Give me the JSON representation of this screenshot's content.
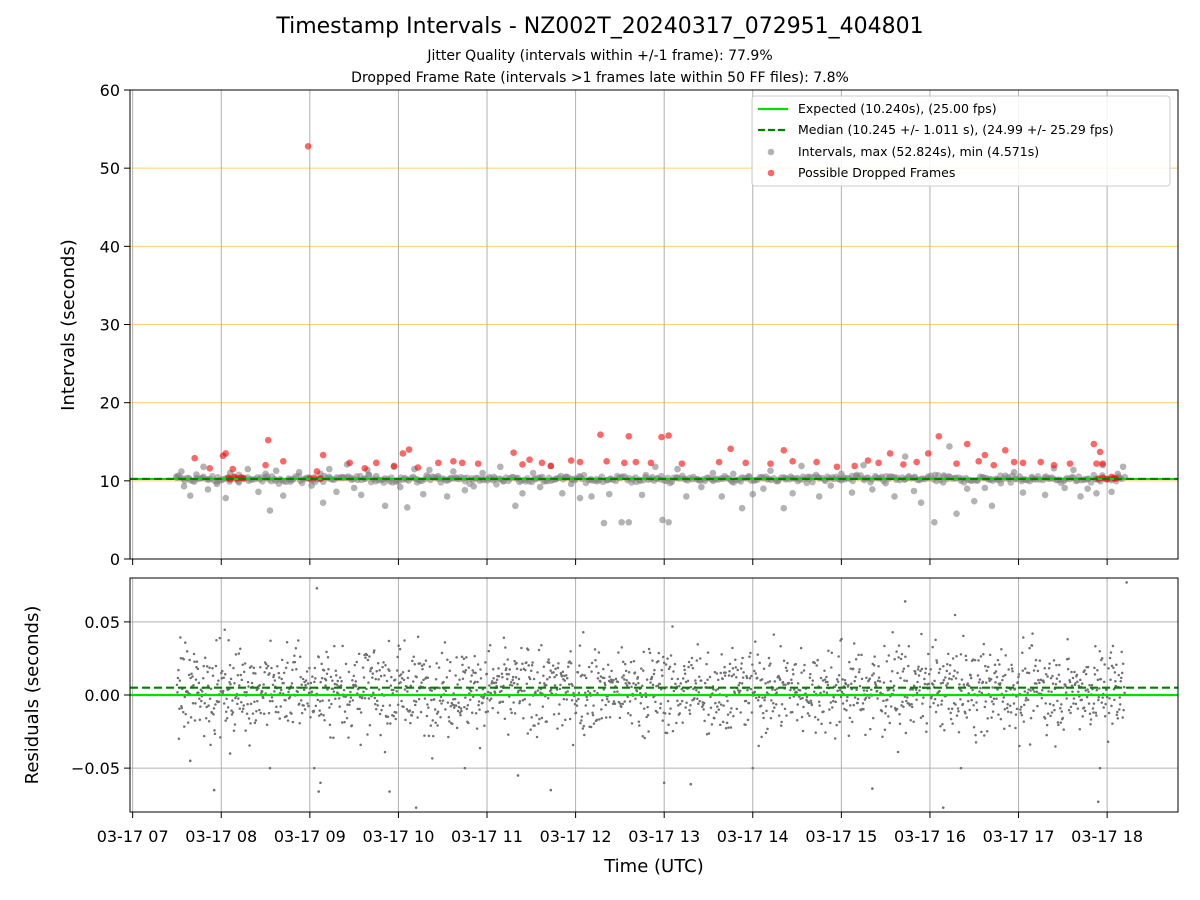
{
  "header": {
    "title": "Timestamp Intervals - NZ002T_20240317_072951_404801",
    "subtitle_jitter": "Jitter Quality (intervals within +/-1 frame): 77.9%",
    "subtitle_dropped": "Dropped Frame Rate (intervals >1 frames late within 50 FF files): 7.8%"
  },
  "chart_data": [
    {
      "type": "scatter",
      "panel": "top",
      "ylabel": "Intervals (seconds)",
      "ylim": [
        0,
        60
      ],
      "yticks": [
        "0",
        "10",
        "20",
        "30",
        "40",
        "50",
        "60"
      ],
      "xlim_hours": [
        6.97,
        18.8
      ],
      "grid": "vertical grey at each hour, horizontal orange at 10-60 s",
      "legend_position": "top-right",
      "expected_interval": 10.24,
      "median_interval": 10.245,
      "legend": {
        "expected": "Expected (10.240s), (25.00 fps)",
        "median": "Median (10.245 +/- 1.011 s), (24.99 +/- 25.29 fps)",
        "intervals": "Intervals, max (52.824s), min (4.571s)",
        "dropped": "Possible Dropped Frames"
      },
      "series": [
        {
          "name": "Intervals, max (52.824s), min (4.571s)",
          "color": "#808080",
          "points": [
            [
              7.5,
              10.4
            ],
            [
              7.55,
              11.2
            ],
            [
              7.58,
              9.3
            ],
            [
              7.65,
              8.1
            ],
            [
              7.72,
              10.8
            ],
            [
              7.8,
              11.8
            ],
            [
              7.85,
              8.9
            ],
            [
              7.95,
              9.6
            ],
            [
              8.05,
              7.8
            ],
            [
              8.1,
              11.0
            ],
            [
              8.2,
              9.8
            ],
            [
              8.3,
              11.5
            ],
            [
              8.42,
              8.6
            ],
            [
              8.5,
              10.9
            ],
            [
              8.55,
              6.2
            ],
            [
              8.62,
              11.3
            ],
            [
              8.7,
              8.1
            ],
            [
              8.78,
              9.9
            ],
            [
              8.88,
              11.1
            ],
            [
              9.02,
              9.4
            ],
            [
              9.12,
              10.9
            ],
            [
              9.15,
              7.2
            ],
            [
              9.22,
              11.5
            ],
            [
              9.3,
              8.6
            ],
            [
              9.42,
              12.1
            ],
            [
              9.5,
              9.1
            ],
            [
              9.58,
              8.2
            ],
            [
              9.65,
              11.4
            ],
            [
              9.75,
              10.6
            ],
            [
              9.85,
              6.8
            ],
            [
              9.95,
              11.8
            ],
            [
              10.02,
              9.2
            ],
            [
              10.1,
              6.6
            ],
            [
              10.18,
              11.5
            ],
            [
              10.28,
              8.3
            ],
            [
              10.35,
              11.4
            ],
            [
              10.45,
              10.6
            ],
            [
              10.55,
              8.0
            ],
            [
              10.62,
              11.2
            ],
            [
              10.75,
              8.8
            ],
            [
              10.85,
              9.3
            ],
            [
              10.95,
              11.0
            ],
            [
              11.08,
              10.5
            ],
            [
              11.15,
              11.8
            ],
            [
              11.32,
              6.8
            ],
            [
              11.4,
              8.4
            ],
            [
              11.52,
              11.0
            ],
            [
              11.6,
              9.2
            ],
            [
              11.72,
              11.9
            ],
            [
              11.85,
              8.4
            ],
            [
              11.95,
              9.6
            ],
            [
              12.05,
              7.8
            ],
            [
              12.18,
              8.0
            ],
            [
              12.32,
              4.6
            ],
            [
              12.38,
              8.3
            ],
            [
              12.52,
              4.7
            ],
            [
              12.6,
              4.7
            ],
            [
              12.75,
              8.2
            ],
            [
              12.9,
              11.8
            ],
            [
              12.98,
              5.0
            ],
            [
              13.05,
              4.7
            ],
            [
              13.15,
              11.5
            ],
            [
              13.25,
              8.0
            ],
            [
              13.42,
              9.2
            ],
            [
              13.55,
              11.0
            ],
            [
              13.65,
              8.0
            ],
            [
              13.78,
              10.9
            ],
            [
              13.88,
              6.5
            ],
            [
              14.0,
              8.3
            ],
            [
              14.12,
              9.0
            ],
            [
              14.2,
              11.3
            ],
            [
              14.35,
              6.5
            ],
            [
              14.45,
              8.4
            ],
            [
              14.55,
              11.9
            ],
            [
              14.62,
              10.5
            ],
            [
              14.75,
              8.0
            ],
            [
              14.88,
              9.4
            ],
            [
              15.0,
              10.9
            ],
            [
              15.12,
              8.5
            ],
            [
              15.25,
              12.0
            ],
            [
              15.35,
              8.9
            ],
            [
              15.5,
              9.7
            ],
            [
              15.6,
              8.0
            ],
            [
              15.72,
              13.1
            ],
            [
              15.82,
              8.7
            ],
            [
              15.9,
              7.2
            ],
            [
              16.05,
              4.7
            ],
            [
              16.15,
              9.8
            ],
            [
              16.22,
              14.4
            ],
            [
              16.3,
              5.8
            ],
            [
              16.42,
              9.0
            ],
            [
              16.5,
              7.4
            ],
            [
              16.62,
              9.1
            ],
            [
              16.7,
              6.8
            ],
            [
              16.8,
              9.7
            ],
            [
              16.95,
              11.1
            ],
            [
              17.05,
              8.5
            ],
            [
              17.15,
              10.5
            ],
            [
              17.3,
              8.2
            ],
            [
              17.4,
              11.6
            ],
            [
              17.52,
              9.1
            ],
            [
              17.62,
              11.4
            ],
            [
              17.7,
              8.0
            ],
            [
              17.78,
              9.0
            ],
            [
              17.88,
              8.4
            ],
            [
              17.95,
              12.0
            ],
            [
              18.05,
              8.6
            ],
            [
              18.12,
              10.9
            ],
            [
              18.18,
              11.8
            ]
          ]
        },
        {
          "name": "Possible Dropped Frames",
          "color": "#ff0000",
          "points": [
            [
              7.7,
              12.9
            ],
            [
              7.87,
              11.6
            ],
            [
              8.02,
              13.2
            ],
            [
              8.05,
              13.5
            ],
            [
              8.08,
              10.4
            ],
            [
              8.1,
              10.2
            ],
            [
              8.13,
              11.5
            ],
            [
              8.15,
              10.5
            ],
            [
              8.18,
              10.3
            ],
            [
              8.22,
              10.4
            ],
            [
              8.25,
              10.3
            ],
            [
              8.5,
              12.0
            ],
            [
              8.53,
              15.2
            ],
            [
              8.7,
              12.5
            ],
            [
              8.98,
              52.8
            ],
            [
              9.0,
              10.3
            ],
            [
              9.05,
              10.4
            ],
            [
              9.08,
              11.2
            ],
            [
              9.12,
              10.3
            ],
            [
              9.15,
              13.3
            ],
            [
              9.45,
              12.3
            ],
            [
              9.62,
              11.6
            ],
            [
              9.75,
              12.3
            ],
            [
              9.95,
              11.9
            ],
            [
              10.05,
              13.5
            ],
            [
              10.12,
              14.0
            ],
            [
              10.22,
              11.7
            ],
            [
              10.45,
              12.3
            ],
            [
              10.62,
              12.5
            ],
            [
              10.72,
              12.3
            ],
            [
              10.9,
              12.2
            ],
            [
              11.3,
              13.6
            ],
            [
              11.4,
              12.1
            ],
            [
              11.48,
              12.7
            ],
            [
              11.62,
              12.3
            ],
            [
              11.72,
              11.9
            ],
            [
              11.95,
              12.6
            ],
            [
              12.05,
              12.4
            ],
            [
              12.28,
              15.9
            ],
            [
              12.35,
              12.5
            ],
            [
              12.55,
              12.3
            ],
            [
              12.6,
              15.7
            ],
            [
              12.68,
              12.4
            ],
            [
              12.85,
              12.3
            ],
            [
              12.97,
              15.6
            ],
            [
              13.05,
              15.8
            ],
            [
              13.2,
              12.2
            ],
            [
              13.62,
              12.4
            ],
            [
              13.75,
              14.1
            ],
            [
              13.92,
              12.3
            ],
            [
              14.2,
              12.2
            ],
            [
              14.35,
              13.9
            ],
            [
              14.45,
              12.5
            ],
            [
              14.72,
              12.4
            ],
            [
              14.95,
              11.8
            ],
            [
              15.15,
              11.9
            ],
            [
              15.3,
              12.6
            ],
            [
              15.42,
              12.3
            ],
            [
              15.55,
              13.5
            ],
            [
              15.7,
              12.1
            ],
            [
              15.85,
              12.4
            ],
            [
              15.98,
              13.5
            ],
            [
              16.1,
              15.7
            ],
            [
              16.3,
              12.2
            ],
            [
              16.42,
              14.7
            ],
            [
              16.55,
              12.5
            ],
            [
              16.62,
              13.3
            ],
            [
              16.72,
              12.0
            ],
            [
              16.85,
              13.9
            ],
            [
              16.95,
              12.4
            ],
            [
              17.05,
              12.3
            ],
            [
              17.25,
              12.4
            ],
            [
              17.4,
              12.0
            ],
            [
              17.58,
              12.2
            ],
            [
              17.85,
              14.7
            ],
            [
              17.88,
              12.2
            ],
            [
              17.92,
              13.7
            ],
            [
              17.95,
              12.2
            ],
            [
              17.9,
              10.3
            ],
            [
              17.95,
              10.4
            ],
            [
              18.0,
              10.2
            ],
            [
              18.05,
              10.5
            ],
            [
              18.08,
              10.3
            ],
            [
              18.1,
              10.3
            ]
          ]
        }
      ]
    },
    {
      "type": "scatter",
      "panel": "bottom",
      "ylabel": "Residuals (seconds)",
      "xlabel": "Time (UTC)",
      "ylim": [
        -0.08,
        0.08
      ],
      "yticks": [
        "−0.05",
        "0.00",
        "0.05"
      ],
      "xlim_hours": [
        6.97,
        18.8
      ],
      "xticks": [
        "03-17 07",
        "03-17 08",
        "03-17 09",
        "03-17 10",
        "03-17 11",
        "03-17 12",
        "03-17 13",
        "03-17 14",
        "03-17 15",
        "03-17 16",
        "03-17 17",
        "03-17 18"
      ],
      "grid": "on",
      "expected_residual": 0.0,
      "median_residual": 0.005,
      "series": [
        {
          "name": "Residuals",
          "color": "#707070",
          "outliers": [
            [
              7.65,
              -0.045
            ],
            [
              7.92,
              -0.065
            ],
            [
              8.1,
              -0.04
            ],
            [
              8.55,
              -0.05
            ],
            [
              9.08,
              0.073
            ],
            [
              9.05,
              -0.05
            ],
            [
              9.1,
              -0.066
            ],
            [
              9.12,
              -0.06
            ],
            [
              9.9,
              -0.066
            ],
            [
              10.2,
              -0.077
            ],
            [
              10.75,
              -0.05
            ],
            [
              11.35,
              -0.055
            ],
            [
              11.72,
              -0.065
            ],
            [
              13.0,
              -0.06
            ],
            [
              13.3,
              -0.061
            ],
            [
              14.0,
              -0.05
            ],
            [
              15.35,
              -0.064
            ],
            [
              15.72,
              0.064
            ],
            [
              16.15,
              -0.077
            ],
            [
              16.35,
              -0.05
            ],
            [
              17.9,
              -0.073
            ],
            [
              17.92,
              -0.05
            ],
            [
              18.22,
              0.077
            ]
          ]
        }
      ]
    }
  ]
}
